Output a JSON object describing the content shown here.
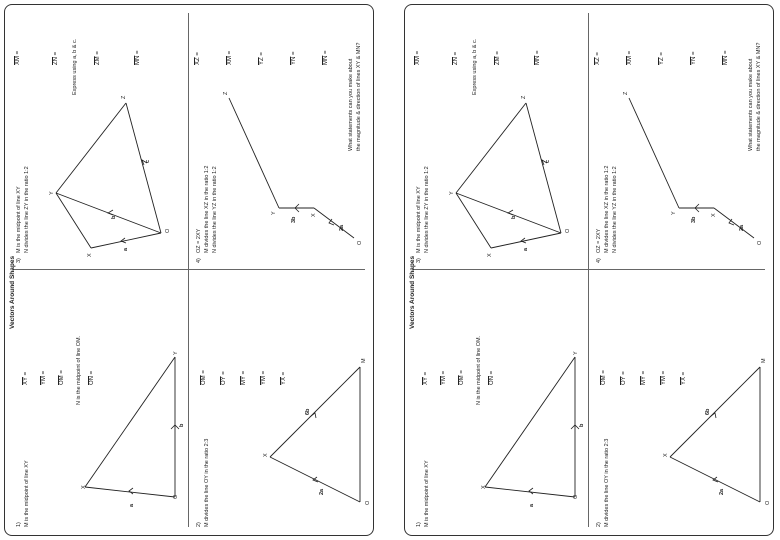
{
  "title": "Vectors Around Shapes",
  "q1": {
    "number": "1)",
    "statement": "M is the midpoint of line XY",
    "rows": [
      {
        "vec": "XY",
        "eq": "="
      },
      {
        "vec": "YM",
        "eq": "="
      },
      {
        "vec": "OM",
        "eq": "="
      },
      {
        "vec": "ON",
        "eq": "="
      }
    ],
    "note": "N is the midpoint of line OM.",
    "points": {
      "x": "X",
      "y": "Y",
      "o": "O"
    },
    "labels": {
      "a": "a",
      "b": "b"
    }
  },
  "q2": {
    "number": "2)",
    "statement": "M divides the line OY in the ratio 2:3",
    "rows": [
      {
        "vec": "OM",
        "eq": "="
      },
      {
        "vec": "OY",
        "eq": "="
      },
      {
        "vec": "MY",
        "eq": "="
      },
      {
        "vec": "YM",
        "eq": "="
      },
      {
        "vec": "YX",
        "eq": "="
      }
    ],
    "points": {
      "x": "X",
      "o": "O",
      "m": "M"
    },
    "labels": {
      "a": "2a",
      "b": "6b"
    }
  },
  "q3": {
    "number": "3)",
    "lines": [
      "M is the midpoint of line XY",
      "N divides the line ZY in the ratio 1:2"
    ],
    "rows": [
      {
        "vec": "XM",
        "eq": "="
      },
      {
        "vec": "ZN",
        "eq": "="
      },
      {
        "vec": "ZM",
        "eq": "="
      },
      {
        "vec": "MN",
        "eq": "="
      }
    ],
    "express": "Express using a, b & c.",
    "points": {
      "x": "X",
      "y": "Y",
      "z": "Z",
      "o": "O"
    },
    "labels": {
      "a": "a",
      "b": "b",
      "c": "c"
    }
  },
  "q4": {
    "number": "4)",
    "lines": [
      "OZ = 2XY",
      "M divides the line XZ in the ratio 1:2",
      "N divides the line YZ in the ratio 1:2"
    ],
    "rows": [
      {
        "vec": "XZ",
        "eq": "="
      },
      {
        "vec": "XM",
        "eq": "="
      },
      {
        "vec": "YZ",
        "eq": "="
      },
      {
        "vec": "YN",
        "eq": "="
      },
      {
        "vec": "MN",
        "eq": "="
      }
    ],
    "question": [
      "What statements can you make about",
      "the magnitude & direction of lines XY & MN?"
    ],
    "points": {
      "x": "X",
      "y": "Y",
      "z": "Z",
      "o": "O"
    },
    "labels": {
      "a": "2a",
      "b": "3b"
    }
  }
}
